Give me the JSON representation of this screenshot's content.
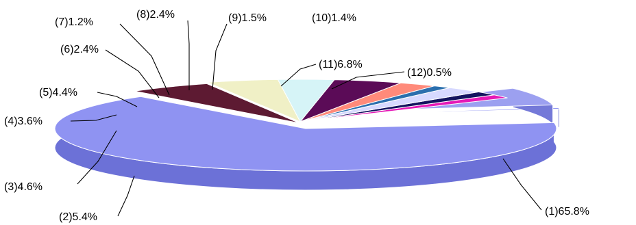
{
  "chart_data": {
    "type": "pie",
    "style": "3d-exploded",
    "slices": [
      {
        "label": "(1)65.8%",
        "value": 65.8,
        "color": "#8f93f2",
        "side_color": "#6c71d7"
      },
      {
        "label": "(2)5.4%",
        "value": 5.4,
        "color": "#5d1a32",
        "side_color": "#a2355a"
      },
      {
        "label": "(3)4.6%",
        "value": 4.6,
        "color": "#f0f0c6",
        "side_color": "#d8d8a0"
      },
      {
        "label": "(4)3.6%",
        "value": 3.6,
        "color": "#d6f4f7",
        "side_color": "#b3dfe4"
      },
      {
        "label": "(5)4.4%",
        "value": 4.4,
        "color": "#5b0b57",
        "side_color": "#3f063c"
      },
      {
        "label": "(6)2.4%",
        "value": 2.4,
        "color": "#ff8a7a",
        "side_color": "#d46756"
      },
      {
        "label": "(7)1.2%",
        "value": 1.2,
        "color": "#2b6fae",
        "side_color": "#1f5588"
      },
      {
        "label": "(8)2.4%",
        "value": 2.4,
        "color": "#d7d9ff",
        "side_color": "#b8bcf2"
      },
      {
        "label": "(9)1.5%",
        "value": 1.5,
        "color": "#13135f",
        "side_color": "#0c0c46"
      },
      {
        "label": "(10)1.4%",
        "value": 1.4,
        "color": "#e51ab7",
        "side_color": "#b11290"
      },
      {
        "label": "(11)6.8%",
        "value": 6.8,
        "color": "#9ca0f0",
        "side_color": "#7479d8"
      },
      {
        "label": "(12)0.5%",
        "value": 0.5,
        "color": "#7f84ef",
        "side_color": "#5f66d0"
      }
    ],
    "title": "",
    "legend": "none"
  }
}
